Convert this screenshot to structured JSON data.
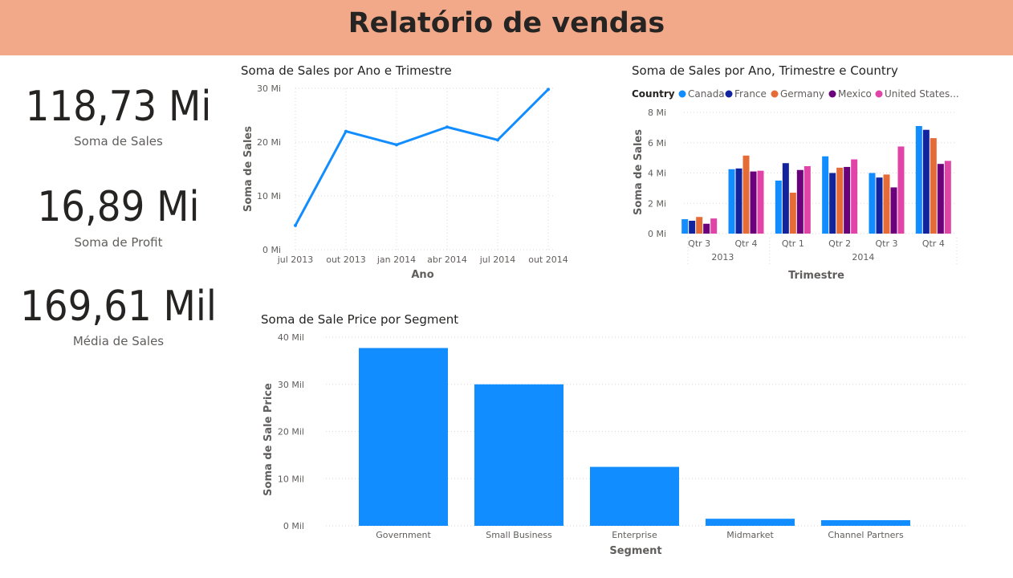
{
  "header": {
    "title": "Relatório de vendas"
  },
  "kpis": [
    {
      "value": "118,73 Mi",
      "label": "Soma de  Sales"
    },
    {
      "value": "16,89 Mi",
      "label": "Soma de Profit"
    },
    {
      "value": "169,61 Mil",
      "label": "Média de  Sales"
    }
  ],
  "colors": {
    "accent": "#118dff",
    "header_bg": "#f2a98a",
    "Canada": "#118dff",
    "France": "#12239e",
    "Germany": "#e66c37",
    "Mexico": "#6b007b",
    "United States": "#e044a7"
  },
  "chart_data": [
    {
      "type": "line",
      "title": "Soma de Sales por Ano e Trimestre",
      "xlabel": "Ano",
      "ylabel": "Soma de Sales",
      "x": [
        "2013-Q3",
        "2013-Q4",
        "2014-Q1",
        "2014-Q2",
        "2014-Q3",
        "2014-Q4"
      ],
      "x_tick_labels": [
        "jul 2013",
        "out 2013",
        "jan 2014",
        "abr 2014",
        "jul 2014",
        "out 2014"
      ],
      "series": [
        {
          "values": [
            4.5,
            22,
            19.5,
            22.8,
            20.4,
            29.8
          ]
        }
      ],
      "y_ticks": [
        {
          "value": 0,
          "label": "0 Mi"
        },
        {
          "value": 10,
          "label": "10 Mi"
        },
        {
          "value": 20,
          "label": "20 Mi"
        },
        {
          "value": 30,
          "label": "30 Mi"
        }
      ],
      "ylim": [
        0,
        30
      ],
      "grid": true,
      "color": "#118dff"
    },
    {
      "type": "bar",
      "title": "Soma de Sales por Ano, Trimestre e Country",
      "xlabel": "Trimestre",
      "ylabel": "Soma de Sales",
      "legend_title": "Country",
      "legend_position": "top-left",
      "categories": [
        "Qtr 3",
        "Qtr 4",
        "Qtr 1",
        "Qtr 2",
        "Qtr 3",
        "Qtr 4"
      ],
      "groups": [
        {
          "label": "2013",
          "count": 2
        },
        {
          "label": "2014",
          "count": 4
        }
      ],
      "series": [
        {
          "name": "Canada",
          "legend_label": "Canada",
          "values": [
            0.95,
            4.25,
            3.5,
            5.1,
            4.0,
            7.1
          ]
        },
        {
          "name": "France",
          "legend_label": "France",
          "values": [
            0.85,
            4.3,
            4.65,
            4.0,
            3.7,
            6.85
          ]
        },
        {
          "name": "Germany",
          "legend_label": "Germany",
          "values": [
            1.1,
            5.15,
            2.7,
            4.35,
            3.9,
            6.3
          ]
        },
        {
          "name": "Mexico",
          "legend_label": "Mexico",
          "values": [
            0.65,
            4.1,
            4.2,
            4.4,
            3.05,
            4.6
          ]
        },
        {
          "name": "United States",
          "legend_label": "United States...",
          "values": [
            1.0,
            4.15,
            4.45,
            4.9,
            5.75,
            4.8
          ]
        }
      ],
      "y_ticks": [
        {
          "value": 0,
          "label": "0 Mi"
        },
        {
          "value": 2,
          "label": "2 Mi"
        },
        {
          "value": 4,
          "label": "4 Mi"
        },
        {
          "value": 6,
          "label": "6 Mi"
        },
        {
          "value": 8,
          "label": "8 Mi"
        }
      ],
      "ylim": [
        0,
        8
      ],
      "grid": true
    },
    {
      "type": "bar",
      "title": "Soma de Sale Price por Segment",
      "xlabel": "Segment",
      "ylabel": "Soma de Sale Price",
      "categories": [
        "Government",
        "Small Business",
        "Enterprise",
        "Midmarket",
        "Channel Partners"
      ],
      "values": [
        37.7,
        30.0,
        12.5,
        1.5,
        1.2
      ],
      "y_ticks": [
        {
          "value": 0,
          "label": "0 Mil"
        },
        {
          "value": 10,
          "label": "10 Mil"
        },
        {
          "value": 20,
          "label": "20 Mil"
        },
        {
          "value": 30,
          "label": "30 Mil"
        },
        {
          "value": 40,
          "label": "40 Mil"
        }
      ],
      "ylim": [
        0,
        40
      ],
      "grid": true,
      "color": "#118dff"
    }
  ]
}
